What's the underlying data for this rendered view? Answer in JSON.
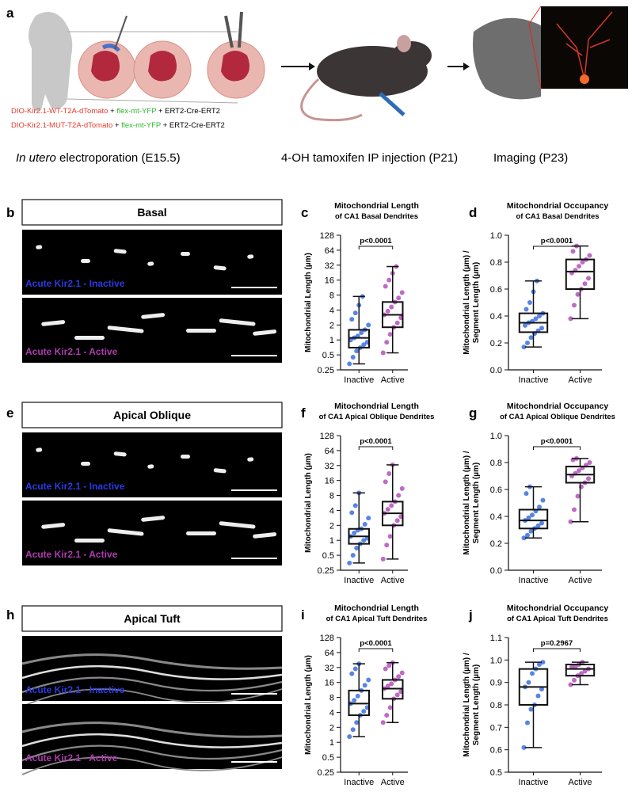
{
  "panel_labels": [
    "a",
    "b",
    "c",
    "d",
    "e",
    "f",
    "g",
    "h",
    "i",
    "j"
  ],
  "constructs": [
    [
      "DIO-Kir2.1-WT-T2A-dTomato",
      "+",
      "flex-mt-YFP",
      "+ ERT2-Cre-ERT2"
    ],
    [
      "DIO-Kir2.1-MUT-T2A-dTomato",
      "+",
      "flex-mt-YFP",
      "+ ERT2-Cre-ERT2"
    ]
  ],
  "steps": [
    {
      "italic": "In utero",
      "text": "electroporation (E15.5)"
    },
    {
      "text": "4-OH tamoxifen IP injection (P21)"
    },
    {
      "text": "Imaging (P23)"
    }
  ],
  "image_rows": [
    {
      "region": "Basal",
      "images": [
        "Acute Kir2.1 - Inactive",
        "Acute Kir2.1 - Active"
      ]
    },
    {
      "region": "Apical Oblique",
      "images": [
        "Acute Kir2.1 - Inactive",
        "Acute Kir2.1 - Active"
      ]
    },
    {
      "region": "Apical Tuft",
      "images": [
        "Acute Kir2.1 - Inactive",
        "Acute Kir2.1 - Active"
      ]
    }
  ],
  "chart_data": [
    {
      "type": "box",
      "title": [
        "Mitochondrial Length",
        "of CA1 Basal Dendrites"
      ],
      "y_label": [
        "Mitochondrial Length (µm)"
      ],
      "categories": [
        "Inactive",
        "Active"
      ],
      "colors": [
        "#3c6fe0",
        "#b352b8"
      ],
      "log_base": 2,
      "ylim": [
        0.25,
        128
      ],
      "yticks": [
        0.25,
        0.5,
        1,
        2,
        4,
        8,
        16,
        32,
        64,
        128
      ],
      "annotation": "p<0.0001",
      "boxes": [
        {
          "min": 0.33,
          "q1": 0.7,
          "median": 1.1,
          "q3": 1.6,
          "max": 7.5,
          "points": [
            0.33,
            0.45,
            0.6,
            0.7,
            0.8,
            0.9,
            1,
            1.1,
            1.2,
            1.4,
            1.6,
            2,
            2.6,
            3.5,
            5,
            7.5
          ]
        },
        {
          "min": 0.55,
          "q1": 1.8,
          "median": 3.2,
          "q3": 5.8,
          "max": 30,
          "points": [
            0.55,
            0.9,
            1.3,
            1.8,
            2.2,
            2.8,
            3.2,
            3.8,
            4.6,
            5.8,
            7,
            9,
            12,
            16,
            22,
            30
          ]
        }
      ]
    },
    {
      "type": "box",
      "title": [
        "Mitochondrial Occupancy",
        "of CA1 Basal Dendrites"
      ],
      "y_label": [
        "Mitochondrial Length (µm) /",
        "Segment Length (µm)"
      ],
      "categories": [
        "Inactive",
        "Active"
      ],
      "colors": [
        "#3c6fe0",
        "#b352b8"
      ],
      "ylim": [
        0,
        1
      ],
      "yticks": [
        {
          "value": 0,
          "label": "0.0"
        },
        0.2,
        0.4,
        0.6,
        0.8,
        {
          "value": 1,
          "label": "1.0"
        }
      ],
      "annotation": "p<0.0001",
      "boxes": [
        {
          "min": 0.17,
          "q1": 0.28,
          "median": 0.35,
          "q3": 0.42,
          "max": 0.66,
          "points": [
            0.17,
            0.2,
            0.24,
            0.27,
            0.29,
            0.31,
            0.33,
            0.35,
            0.36,
            0.38,
            0.4,
            0.42,
            0.45,
            0.5,
            0.58,
            0.66
          ]
        },
        {
          "min": 0.38,
          "q1": 0.6,
          "median": 0.73,
          "q3": 0.82,
          "max": 0.92,
          "points": [
            0.38,
            0.48,
            0.56,
            0.6,
            0.64,
            0.68,
            0.72,
            0.74,
            0.77,
            0.8,
            0.82,
            0.85,
            0.88,
            0.92
          ]
        }
      ]
    },
    {
      "type": "box",
      "title": [
        "Mitochondrial Length",
        "of CA1 Apical Oblique Dendrites"
      ],
      "y_label": [
        "Mitochondrial Length (µm)"
      ],
      "categories": [
        "Inactive",
        "Active"
      ],
      "colors": [
        "#3c6fe0",
        "#b352b8"
      ],
      "log_base": 2,
      "ylim": [
        0.25,
        128
      ],
      "yticks": [
        0.25,
        0.5,
        1,
        2,
        4,
        8,
        16,
        32,
        64,
        128
      ],
      "annotation": "p<0.0001",
      "boxes": [
        {
          "min": 0.35,
          "q1": 0.85,
          "median": 1.2,
          "q3": 1.7,
          "max": 9,
          "points": [
            0.35,
            0.5,
            0.7,
            0.85,
            1,
            1.1,
            1.2,
            1.4,
            1.6,
            1.7,
            2.1,
            2.8,
            3.6,
            5,
            9
          ]
        },
        {
          "min": 0.42,
          "q1": 2,
          "median": 3.5,
          "q3": 6,
          "max": 33,
          "points": [
            0.42,
            0.8,
            1.2,
            2,
            2.5,
            3,
            3.5,
            4.2,
            5,
            6,
            8,
            11,
            15,
            22,
            33
          ]
        }
      ]
    },
    {
      "type": "box",
      "title": [
        "Mitochondrial Occupancy",
        "of CA1 Apical Oblique Dendrites"
      ],
      "y_label": [
        "Mitochondrial Length (µm) /",
        "Segment Length (µm)"
      ],
      "categories": [
        "Inactive",
        "Active"
      ],
      "colors": [
        "#3c6fe0",
        "#b352b8"
      ],
      "ylim": [
        0,
        1
      ],
      "yticks": [
        {
          "value": 0,
          "label": "0.0"
        },
        0.2,
        0.4,
        0.6,
        0.8,
        {
          "value": 1,
          "label": "1.0"
        }
      ],
      "annotation": "p<0.0001",
      "boxes": [
        {
          "min": 0.24,
          "q1": 0.31,
          "median": 0.37,
          "q3": 0.45,
          "max": 0.62,
          "points": [
            0.24,
            0.26,
            0.29,
            0.31,
            0.33,
            0.35,
            0.37,
            0.39,
            0.41,
            0.44,
            0.47,
            0.52,
            0.57,
            0.62
          ]
        },
        {
          "min": 0.36,
          "q1": 0.65,
          "median": 0.71,
          "q3": 0.77,
          "max": 0.83,
          "points": [
            0.36,
            0.45,
            0.55,
            0.62,
            0.65,
            0.68,
            0.7,
            0.72,
            0.74,
            0.76,
            0.78,
            0.8,
            0.82,
            0.83
          ]
        }
      ]
    },
    {
      "type": "box",
      "title": [
        "Mitochondrial Length",
        "of CA1 Apical Tuft Dendrites"
      ],
      "y_label": [
        "Mitochondrial Length (µm)"
      ],
      "categories": [
        "Inactive",
        "Active"
      ],
      "colors": [
        "#3c6fe0",
        "#b352b8"
      ],
      "log_base": 2,
      "ylim": [
        0.25,
        128
      ],
      "yticks": [
        0.25,
        0.5,
        1,
        2,
        4,
        8,
        16,
        32,
        64,
        128
      ],
      "annotation": "p<0.0001",
      "boxes": [
        {
          "min": 1.3,
          "q1": 3.5,
          "median": 6,
          "q3": 11,
          "max": 38,
          "points": [
            1.3,
            1.8,
            2.5,
            3.5,
            4.2,
            5,
            6,
            7,
            8.5,
            11,
            14,
            18,
            24,
            30,
            38
          ]
        },
        {
          "min": 2.5,
          "q1": 7.5,
          "median": 12,
          "q3": 18,
          "max": 40,
          "points": [
            2.5,
            3.5,
            5,
            7.5,
            9,
            10.5,
            12,
            13.5,
            15,
            18,
            21,
            25,
            30,
            35,
            40
          ]
        }
      ]
    },
    {
      "type": "box",
      "title": [
        "Mitochondrial Occupancy",
        "of CA1 Apical Tuft Dendrites"
      ],
      "y_label": [
        "Mitochondrial Length (µm) /",
        "Segment Length (µm)"
      ],
      "categories": [
        "Inactive",
        "Active"
      ],
      "colors": [
        "#3c6fe0",
        "#b352b8"
      ],
      "ylim": [
        0.5,
        1.1
      ],
      "yticks": [
        0.5,
        0.6,
        0.7,
        0.8,
        0.9,
        {
          "value": 1,
          "label": "1.0"
        },
        1.1
      ],
      "annotation": "p=0.2967",
      "boxes": [
        {
          "min": 0.61,
          "q1": 0.8,
          "median": 0.88,
          "q3": 0.96,
          "max": 0.99,
          "points": [
            0.61,
            0.72,
            0.78,
            0.8,
            0.84,
            0.87,
            0.88,
            0.9,
            0.94,
            0.96,
            0.98,
            0.99
          ]
        },
        {
          "min": 0.89,
          "q1": 0.93,
          "median": 0.96,
          "q3": 0.98,
          "max": 0.99,
          "points": [
            0.89,
            0.91,
            0.93,
            0.94,
            0.95,
            0.96,
            0.97,
            0.97,
            0.98,
            0.99
          ]
        }
      ]
    }
  ]
}
